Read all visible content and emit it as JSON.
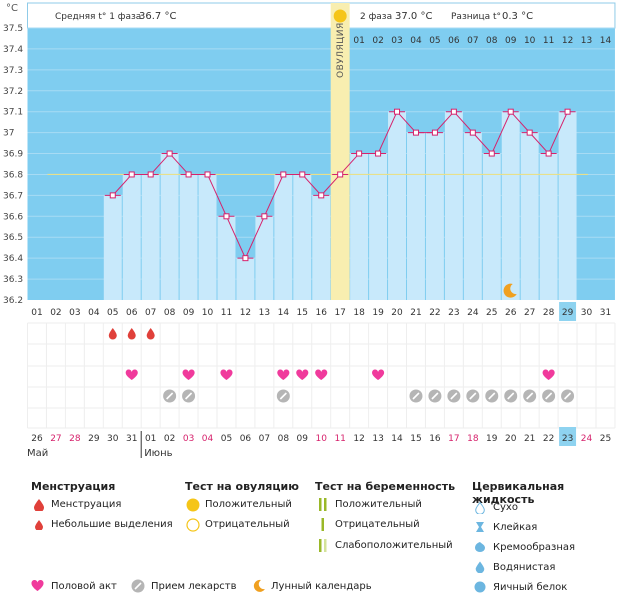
{
  "header": {
    "unit": "°C",
    "phase1_label": "Средняя t° 1 фаза",
    "phase1_value": "36.7 °C",
    "phase2_label": "2 фаза",
    "phase2_value": "37.0 °C",
    "diff_label": "Разница t°",
    "diff_value": "0.3 °C"
  },
  "ovulation_label": "ОВУЛЯЦИЯ",
  "colors": {
    "plot_bg": "#7fcdf0",
    "bar_fill": "#c8e9fb",
    "line": "#d6226c",
    "ovulation": "#f8eeb0",
    "cover_line": "#e8e08a",
    "weekend": "#d6226c",
    "menstruation": "#e0403a",
    "heart": "#f03a9c",
    "pill": "#b5b5b5",
    "moon": "#f0a020",
    "today": "#8ed3f0"
  },
  "chart_data": {
    "type": "line",
    "title": "",
    "xlabel": "",
    "ylabel": "°C",
    "ylim": [
      36.2,
      37.5
    ],
    "yticks": [
      "36.2",
      "36.3",
      "36.4",
      "36.5",
      "36.6",
      "36.7",
      "36.8",
      "36.9",
      "37",
      "37.1",
      "37.2",
      "37.3",
      "37.4",
      "37.5"
    ],
    "cycle_days": [
      "01",
      "02",
      "03",
      "04",
      "05",
      "06",
      "07",
      "08",
      "09",
      "10",
      "11",
      "12",
      "13",
      "14",
      "15",
      "16",
      "17",
      "18",
      "19",
      "20",
      "21",
      "22",
      "23",
      "24",
      "25",
      "26",
      "27",
      "28",
      "29",
      "30",
      "31"
    ],
    "top_days": [
      "01",
      "02",
      "03",
      "04",
      "05",
      "06",
      "07",
      "08",
      "09",
      "10",
      "11",
      "12",
      "13",
      "14"
    ],
    "dates": [
      "26",
      "27",
      "28",
      "29",
      "30",
      "31",
      "01",
      "02",
      "03",
      "04",
      "05",
      "06",
      "07",
      "08",
      "09",
      "10",
      "11",
      "12",
      "13",
      "14",
      "15",
      "16",
      "17",
      "18",
      "19",
      "20",
      "21",
      "22",
      "23",
      "24",
      "25"
    ],
    "weekend_dates": [
      2,
      3,
      9,
      10,
      16,
      17,
      23,
      24,
      30
    ],
    "series": [
      {
        "values": [
          null,
          null,
          null,
          null,
          36.7,
          36.8,
          36.8,
          36.9,
          36.8,
          36.8,
          36.6,
          36.4,
          36.6,
          36.8,
          36.8,
          36.7,
          36.8,
          36.9,
          36.9,
          37.1,
          37.0,
          37.0,
          37.1,
          37.0,
          36.9,
          37.1,
          37.0,
          36.9,
          37.1,
          null,
          null
        ]
      }
    ],
    "cover_line": 36.8,
    "ovulation_day": 17,
    "today_day": 29,
    "moon_day": 26,
    "menstruation_days": [
      5,
      6,
      7
    ],
    "sex_days": [
      6,
      9,
      11,
      14,
      15,
      16,
      19,
      28
    ],
    "pill_days": [
      8,
      9,
      14,
      21,
      22,
      23,
      24,
      25,
      26,
      27,
      28,
      29
    ],
    "months": [
      "Май",
      "Июнь"
    ],
    "month_start_day": 7
  },
  "legend": {
    "menstruation": {
      "title": "Менструация",
      "items": [
        "Менструация",
        "Небольшие выделения"
      ]
    },
    "ovulation_test": {
      "title": "Тест на овуляцию",
      "items": [
        "Положительный",
        "Отрицательный"
      ]
    },
    "pregnancy_test": {
      "title": "Тест на беременность",
      "items": [
        "Положительный",
        "Отрицательный",
        "Слабоположительный"
      ]
    },
    "cervical": {
      "title": "Цервикальная жидкость",
      "items": [
        "Сухо",
        "Клейкая",
        "Кремообразная",
        "Водянистая",
        "Яичный белок"
      ]
    },
    "bottom": [
      "Половой акт",
      "Прием лекарств",
      "Лунный календарь"
    ]
  }
}
